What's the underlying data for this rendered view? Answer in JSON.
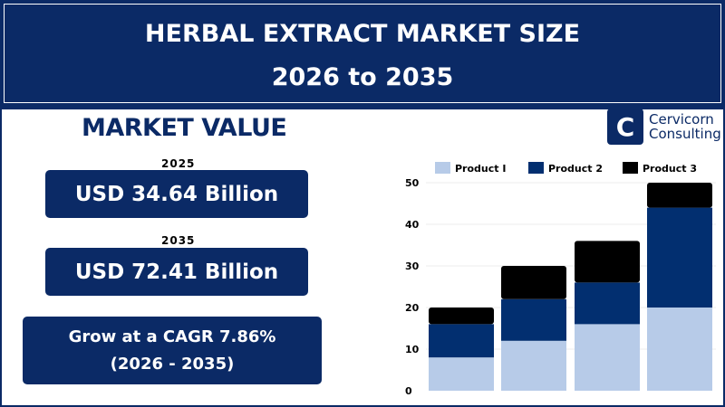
{
  "header": {
    "title": "HERBAL EXTRACT MARKET SIZE",
    "subtitle": "2026 to 2035"
  },
  "market": {
    "heading": "MARKET VALUE",
    "year1": "2025",
    "value1": "USD 34.64 Billion",
    "year2": "2035",
    "value2": "USD 72.41 Billion",
    "cagr_line1": "Grow at a CAGR 7.86%",
    "cagr_line2": "(2026 - 2035)"
  },
  "logo": {
    "line1": "Cervicorn",
    "line2": "Consulting"
  },
  "colors": {
    "navy": "#0b2a66",
    "product1": "#b7cbe8",
    "product2": "#022f70",
    "product3": "#000000"
  },
  "chart_data": {
    "type": "bar",
    "stacked": true,
    "categories": [
      "",
      "",
      "",
      ""
    ],
    "series": [
      {
        "name": "Product I",
        "values": [
          8,
          12,
          16,
          20
        ]
      },
      {
        "name": "Product 2",
        "values": [
          8,
          10,
          10,
          24
        ]
      },
      {
        "name": "Product 3",
        "values": [
          4,
          8,
          10,
          6
        ]
      }
    ],
    "ylim": [
      0,
      50
    ],
    "yticks": [
      "0",
      "10",
      "20",
      "30",
      "40",
      "50"
    ],
    "grid": true,
    "legend": "top"
  }
}
